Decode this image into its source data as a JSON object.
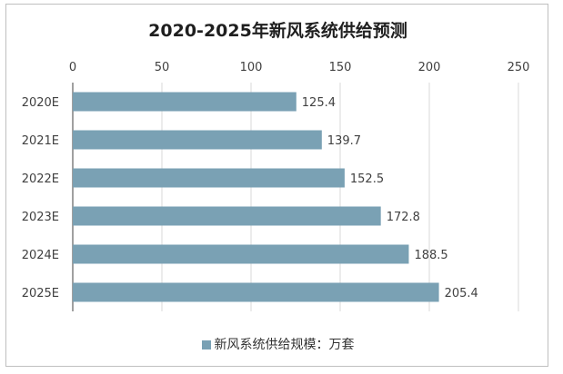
{
  "chart_data": {
    "type": "bar",
    "orientation": "horizontal",
    "title": "2020-2025年新风系统供给预测",
    "categories": [
      "2020E",
      "2021E",
      "2022E",
      "2023E",
      "2024E",
      "2025E"
    ],
    "series": [
      {
        "name": "新风系统供给规模：万套",
        "values": [
          125.4,
          139.7,
          152.5,
          172.8,
          188.5,
          205.4
        ]
      }
    ],
    "x_ticks": [
      0,
      50,
      100,
      150,
      200,
      250
    ],
    "xlim": [
      0,
      250
    ],
    "x_axis_position": "top",
    "grid": true,
    "legend_position": "bottom",
    "bar_color": "#7aa1b4"
  }
}
